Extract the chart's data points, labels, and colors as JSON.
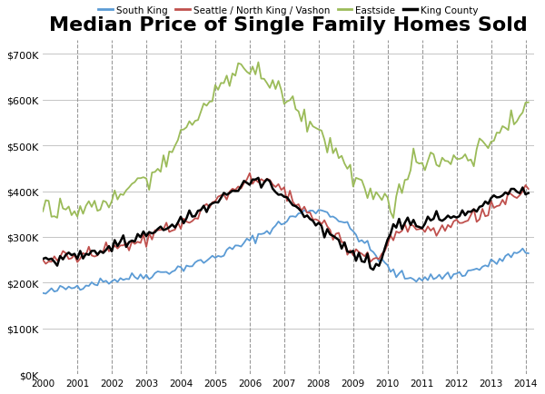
{
  "title": "Median Price of Single Family Homes Sold",
  "title_fontsize": 16,
  "background_color": "#ffffff",
  "grid_color": "#bbbbbb",
  "dashed_years": [
    2001,
    2002,
    2003,
    2004,
    2005,
    2006,
    2007,
    2008,
    2009,
    2010,
    2011,
    2012,
    2013,
    2014
  ],
  "ylim": [
    0,
    730000
  ],
  "xlim": [
    2000,
    2014.25
  ],
  "yticks": [
    0,
    100000,
    200000,
    300000,
    400000,
    500000,
    600000,
    700000
  ],
  "series": {
    "south_king": {
      "label": "South King",
      "color": "#5B9BD5",
      "linewidth": 1.3
    },
    "seattle": {
      "label": "Seattle / North King / Vashon",
      "color": "#C0504D",
      "linewidth": 1.3
    },
    "eastside": {
      "label": "Eastside",
      "color": "#9BBB59",
      "linewidth": 1.3
    },
    "king_county": {
      "label": "King County",
      "color": "#000000",
      "linewidth": 1.8
    }
  },
  "noise_seed": 42,
  "south_king_base": [
    175,
    185,
    192,
    200,
    205,
    210,
    215,
    222,
    230,
    240,
    252,
    268,
    285,
    305,
    325,
    345,
    360,
    355,
    330,
    295,
    255,
    220,
    210,
    210,
    215,
    220,
    230,
    245,
    260,
    268
  ],
  "seattle_base": [
    248,
    252,
    258,
    265,
    272,
    280,
    292,
    307,
    323,
    345,
    370,
    397,
    420,
    428,
    408,
    380,
    350,
    318,
    290,
    265,
    248,
    313,
    315,
    318,
    322,
    330,
    345,
    367,
    388,
    393
  ],
  "eastside_base": [
    365,
    362,
    358,
    368,
    382,
    400,
    428,
    462,
    498,
    548,
    598,
    648,
    672,
    660,
    630,
    590,
    548,
    505,
    462,
    422,
    388,
    362,
    458,
    462,
    466,
    472,
    490,
    520,
    558,
    590
  ],
  "king_county_base": [
    252,
    256,
    262,
    270,
    278,
    290,
    303,
    318,
    332,
    350,
    370,
    392,
    412,
    422,
    400,
    372,
    342,
    310,
    278,
    252,
    237,
    330,
    330,
    333,
    338,
    347,
    363,
    382,
    397,
    400
  ],
  "months_per_segment": 6,
  "total_months": 170
}
